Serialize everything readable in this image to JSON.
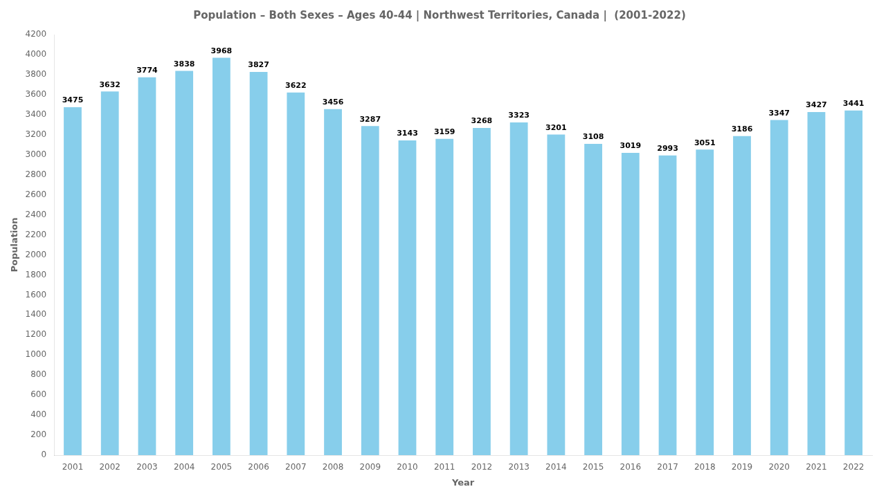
{
  "chart_data": {
    "type": "bar",
    "title": "Population – Both Sexes – Ages 40-44 | Northwest Territories, Canada |  (2001-2022)",
    "x_label": "Year",
    "y_label": "Population",
    "categories": [
      "2001",
      "2002",
      "2003",
      "2004",
      "2005",
      "2006",
      "2007",
      "2008",
      "2009",
      "2010",
      "2011",
      "2012",
      "2013",
      "2014",
      "2015",
      "2016",
      "2017",
      "2018",
      "2019",
      "2020",
      "2021",
      "2022"
    ],
    "values": [
      3475,
      3632,
      3774,
      3838,
      3968,
      3827,
      3622,
      3456,
      3287,
      3143,
      3159,
      3268,
      3323,
      3201,
      3108,
      3019,
      2993,
      3051,
      3186,
      3347,
      3427,
      3441
    ],
    "color": "#87CEEB",
    "ylim": [
      0,
      4200
    ],
    "yticks": [
      0,
      200,
      400,
      600,
      800,
      1000,
      1200,
      1400,
      1600,
      1800,
      2000,
      2200,
      2400,
      2600,
      2800,
      3000,
      3200,
      3400,
      3600,
      3800,
      4000,
      4200
    ],
    "grid": false,
    "data_labels": true
  }
}
